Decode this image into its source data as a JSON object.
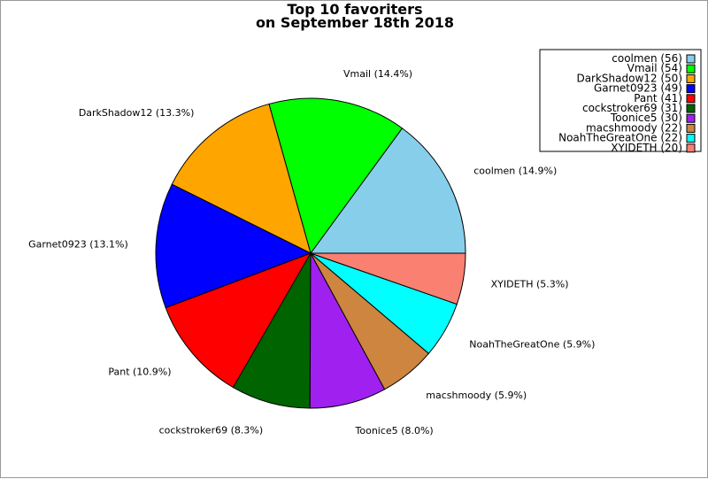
{
  "chart_data": {
    "type": "pie",
    "title": [
      "Top 10 favoriters",
      "on September 18th 2018"
    ],
    "start_angle_deg": 0,
    "direction": "counterclockwise",
    "legend_position": "top-right",
    "slices": [
      {
        "name": "coolmen",
        "value": 56,
        "percent_label": "coolmen (14.9%)",
        "legend_label": "coolmen (56)",
        "color": "#87ceeb"
      },
      {
        "name": "Vmail",
        "value": 54,
        "percent_label": "Vmail (14.4%)",
        "legend_label": "Vmail (54)",
        "color": "#00ff00"
      },
      {
        "name": "DarkShadow12",
        "value": 50,
        "percent_label": "DarkShadow12 (13.3%)",
        "legend_label": "DarkShadow12 (50)",
        "color": "#ffa500"
      },
      {
        "name": "Garnet0923",
        "value": 49,
        "percent_label": "Garnet0923 (13.1%)",
        "legend_label": "Garnet0923 (49)",
        "color": "#0000ff"
      },
      {
        "name": "Pant",
        "value": 41,
        "percent_label": "Pant (10.9%)",
        "legend_label": "Pant (41)",
        "color": "#ff0000"
      },
      {
        "name": "cockstroker69",
        "value": 31,
        "percent_label": "cockstroker69 (8.3%)",
        "legend_label": "cockstroker69 (31)",
        "color": "#006400"
      },
      {
        "name": "Toonice5",
        "value": 30,
        "percent_label": "Toonice5 (8.0%)",
        "legend_label": "Toonice5 (30)",
        "color": "#a020f0"
      },
      {
        "name": "macshmoody",
        "value": 22,
        "percent_label": "macshmoody (5.9%)",
        "legend_label": "macshmoody (22)",
        "color": "#cd853f"
      },
      {
        "name": "NoahTheGreatOne",
        "value": 22,
        "percent_label": "NoahTheGreatOne (5.9%)",
        "legend_label": "NoahTheGreatOne (22)",
        "color": "#00ffff"
      },
      {
        "name": "XYIDETH",
        "value": 20,
        "percent_label": "XYIDETH (5.3%)",
        "legend_label": "XYIDETH (20)",
        "color": "#fa8072"
      }
    ]
  }
}
